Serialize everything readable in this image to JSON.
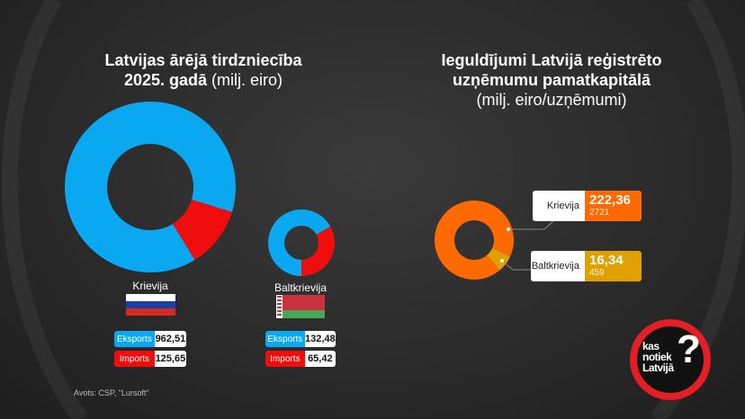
{
  "left_title": {
    "line1": "Latvijas ārējā tirdzniecība",
    "line2_bold": "2025. gadā",
    "line2_light": "(milj. eiro)"
  },
  "right_title": {
    "line1": "Ieguldījumi Latvijā reģistrēto",
    "line2": "uzņēmumu pamatkapitālā",
    "line3": "(milj. eiro/uzņēmumi)"
  },
  "colors": {
    "export": "#0aa8f0",
    "import": "#f00d0d",
    "russia_invest": "#ff6a00",
    "belarus_invest": "#e0a000"
  },
  "chart_data": [
    {
      "type": "pie",
      "donut": true,
      "title": "Krievija",
      "categories": [
        "Eksports",
        "Imports"
      ],
      "values": [
        962.51,
        125.65
      ],
      "labels": [
        "962,51",
        "125,65"
      ]
    },
    {
      "type": "pie",
      "donut": true,
      "title": "Baltkrievija",
      "categories": [
        "Eksports",
        "Imports"
      ],
      "values": [
        132.48,
        65.42
      ],
      "labels": [
        "132,48",
        "65,42"
      ]
    },
    {
      "type": "pie",
      "donut": true,
      "categories": [
        "Krievija",
        "Baltkrievija"
      ],
      "values": [
        222.36,
        16.34
      ],
      "labels": [
        "222,36",
        "16,34"
      ],
      "companies": [
        "2721",
        "459"
      ]
    }
  ],
  "source": "Avots: CSP, \"Lursoft\"",
  "logo": {
    "line1": "kas",
    "line2": "notiek",
    "line3": "Latvijā",
    "mark": "?"
  }
}
